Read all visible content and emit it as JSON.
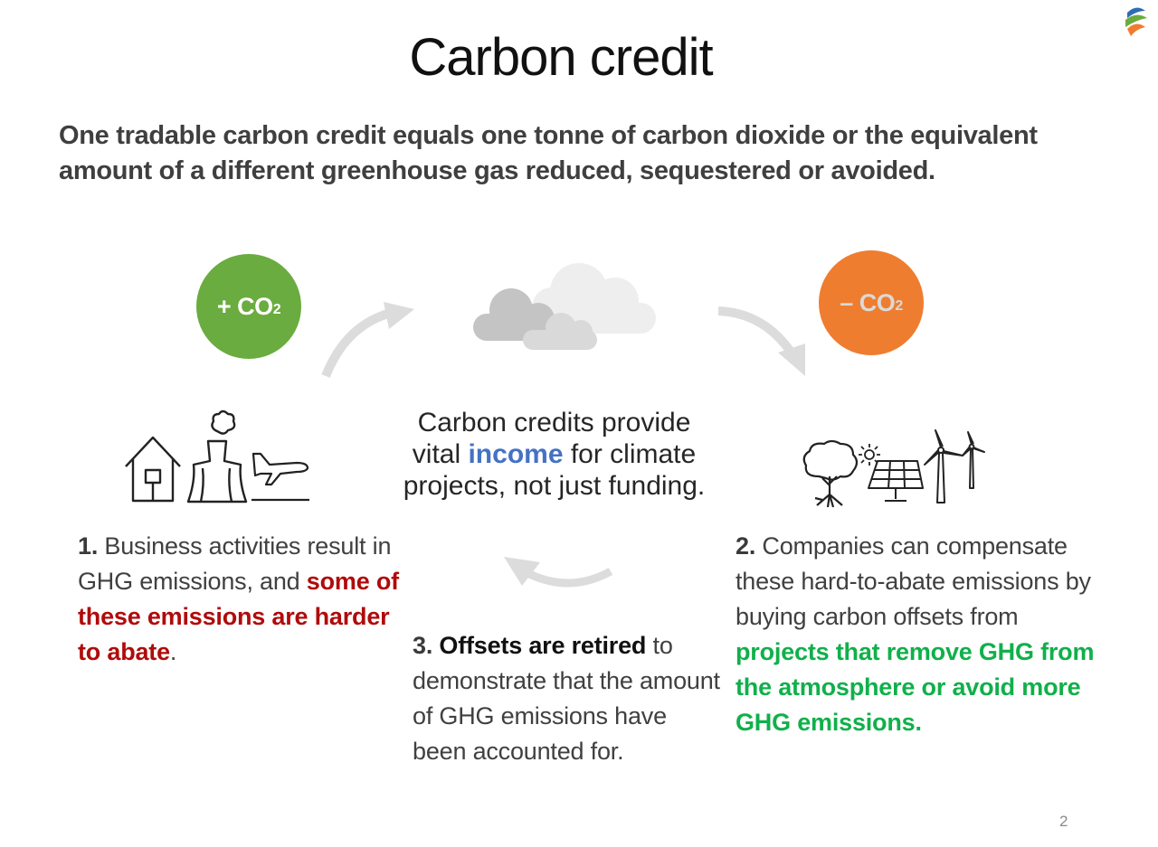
{
  "slide": {
    "title": "Carbon credit",
    "subtitle": "One tradable carbon credit equals one tonne of carbon dioxide or the equivalent amount of a different greenhouse gas reduced, sequestered or avoided.",
    "plus_co2": {
      "prefix": "+ CO",
      "sub": "2",
      "color": "#6aac3f"
    },
    "minus_co2": {
      "prefix": "– CO",
      "sub": "2",
      "color": "#ef7d2f"
    },
    "center": {
      "line1": "Carbon credits provide",
      "line2_before": "vital ",
      "line2_highlight": "income",
      "line2_after": " for climate",
      "line3": "projects, not just funding.",
      "highlight_color": "#4472c4"
    },
    "step1": {
      "number": "1.",
      "text": " Business activities result in GHG emissions, and ",
      "highlight": "some of these emissions are harder to abate",
      "end": "."
    },
    "step2": {
      "number": "2.",
      "text": " Companies can compensate these hard-to-abate emissions by buying carbon offsets from ",
      "highlight": "projects that remove GHG from the atmosphere or avoid more GHG emissions."
    },
    "step3": {
      "number": "3.",
      "bold": " Offsets are retired",
      "text": " to demonstrate that the amount of GHG emissions have been accounted for."
    },
    "page_number": "2",
    "icons": [
      "logo-icon",
      "house-icon",
      "factory-icon",
      "airplane-icon",
      "cloud-icon",
      "tree-icon",
      "sun-icon",
      "solar-panel-icon",
      "wind-turbine-icon",
      "arrow-icon"
    ]
  }
}
